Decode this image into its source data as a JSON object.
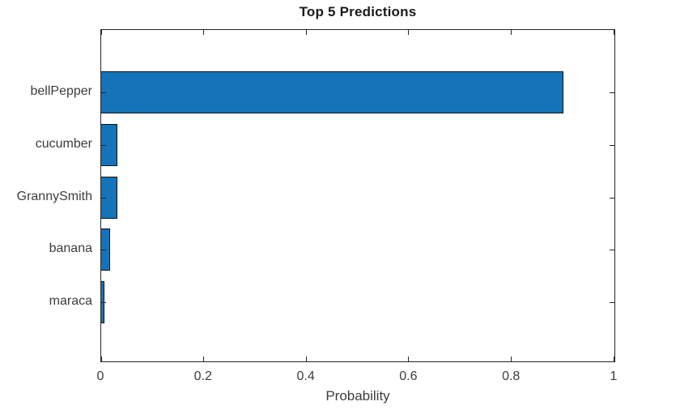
{
  "chart_data": {
    "type": "bar",
    "orientation": "horizontal",
    "title": "Top 5 Predictions",
    "categories": [
      "bellPepper",
      "cucumber",
      "GrannySmith",
      "banana",
      "maraca"
    ],
    "values": [
      0.9,
      0.032,
      0.031,
      0.017,
      0.006
    ],
    "xlabel": "Probability",
    "ylabel": "",
    "xlim": [
      0,
      1
    ],
    "xticks": [
      0,
      0.2,
      0.4,
      0.6,
      0.8,
      1
    ],
    "xtick_labels": [
      "0",
      "0.2",
      "0.4",
      "0.6",
      "0.8",
      "1"
    ],
    "grid": false,
    "legend": "none",
    "box": true,
    "tick_direction": "in",
    "colors": {
      "bar_fill": "#1473B9",
      "bar_edge": "#141414",
      "axis": "#262626",
      "tick_label": "#3D3D3D",
      "title": "#1A1A1A",
      "background": "#FFFFFF"
    }
  }
}
